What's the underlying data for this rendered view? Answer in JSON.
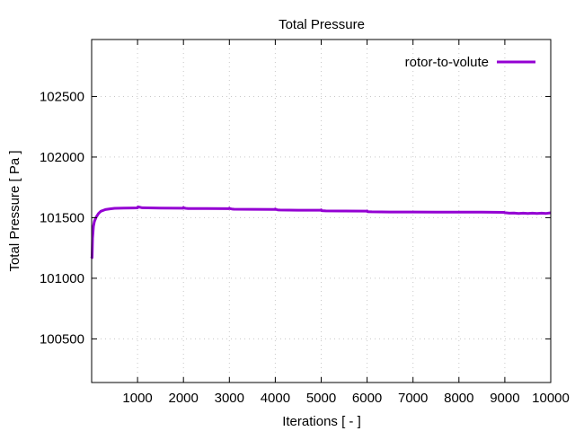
{
  "chart_data": {
    "type": "line",
    "title": "Total Pressure",
    "xlabel": "Iterations [ - ]",
    "ylabel": "Total Pressure [ Pa ]",
    "xlim": [
      0,
      10000
    ],
    "ylim": [
      100140,
      102970
    ],
    "xticks": [
      1000,
      2000,
      3000,
      4000,
      5000,
      6000,
      7000,
      8000,
      9000,
      10000
    ],
    "yticks": [
      100500,
      101000,
      101500,
      102000,
      102500
    ],
    "grid": true,
    "legend_position": "top-right",
    "series": [
      {
        "name": "rotor-to-volute",
        "color": "#9400d3",
        "x": [
          0,
          10,
          20,
          40,
          60,
          100,
          150,
          200,
          300,
          400,
          500,
          700,
          900,
          1000,
          1010,
          1050,
          1100,
          1500,
          1990,
          2000,
          2010,
          2050,
          2100,
          2500,
          2990,
          3000,
          3010,
          3050,
          3100,
          3500,
          3990,
          4000,
          4010,
          4050,
          4100,
          4500,
          4990,
          5000,
          5010,
          5100,
          5500,
          5990,
          6000,
          6010,
          6100,
          6500,
          7000,
          7500,
          8000,
          8500,
          8990,
          9000,
          9100,
          9200,
          9300,
          9400,
          9500,
          9600,
          9700,
          9800,
          9900,
          10000
        ],
        "y": [
          101180,
          101170,
          101330,
          101430,
          101470,
          101505,
          101535,
          101553,
          101567,
          101573,
          101577,
          101579,
          101580,
          101581,
          101590,
          101586,
          101582,
          101579,
          101578,
          101584,
          101580,
          101577,
          101576,
          101575,
          101574,
          101579,
          101575,
          101572,
          101570,
          101569,
          101568,
          101572,
          101568,
          101565,
          101563,
          101562,
          101562,
          101565,
          101558,
          101556,
          101555,
          101554,
          101556,
          101550,
          101548,
          101547,
          101547,
          101546,
          101545,
          101545,
          101544,
          101541,
          101537,
          101538,
          101535,
          101537,
          101534,
          101537,
          101535,
          101537,
          101535,
          101540
        ]
      }
    ]
  }
}
